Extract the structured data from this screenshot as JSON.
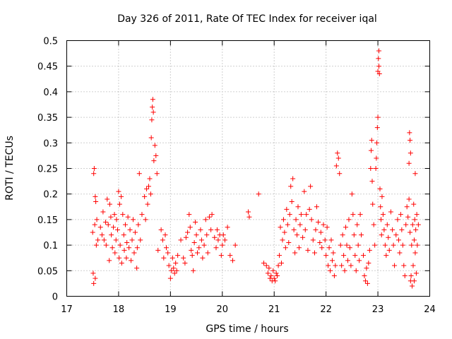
{
  "chart_data": {
    "type": "scatter",
    "title": "Day 326 of 2011, Rate Of TEC Index for receiver iqal",
    "xlabel": "GPS time / hours",
    "ylabel": "ROTI / TECUs",
    "xlim": [
      17,
      24
    ],
    "ylim": [
      0,
      0.5
    ],
    "xticks": [
      17,
      18,
      19,
      20,
      21,
      22,
      23,
      24
    ],
    "yticks": [
      0,
      0.05,
      0.1,
      0.15,
      0.2,
      0.25,
      0.3,
      0.35,
      0.4,
      0.45,
      0.5
    ],
    "grid": true,
    "marker": "+",
    "color": "#ff0000",
    "series": [
      {
        "name": "ROTI",
        "points": [
          [
            17.5,
            0.125
          ],
          [
            17.51,
            0.045
          ],
          [
            17.52,
            0.24
          ],
          [
            17.52,
            0.025
          ],
          [
            17.53,
            0.25
          ],
          [
            17.54,
            0.14
          ],
          [
            17.55,
            0.035
          ],
          [
            17.55,
            0.195
          ],
          [
            17.56,
            0.185
          ],
          [
            17.57,
            0.1
          ],
          [
            17.58,
            0.15
          ],
          [
            17.6,
            0.11
          ],
          [
            17.65,
            0.135
          ],
          [
            17.68,
            0.12
          ],
          [
            17.7,
            0.165
          ],
          [
            17.72,
            0.11
          ],
          [
            17.75,
            0.145
          ],
          [
            17.76,
            0.1
          ],
          [
            17.78,
            0.19
          ],
          [
            17.8,
            0.14
          ],
          [
            17.82,
            0.07
          ],
          [
            17.83,
            0.18
          ],
          [
            17.85,
            0.155
          ],
          [
            17.86,
            0.12
          ],
          [
            17.88,
            0.095
          ],
          [
            17.9,
            0.135
          ],
          [
            17.92,
            0.16
          ],
          [
            17.93,
            0.085
          ],
          [
            17.95,
            0.11
          ],
          [
            17.96,
            0.15
          ],
          [
            17.98,
            0.13
          ],
          [
            18.0,
            0.205
          ],
          [
            18.01,
            0.075
          ],
          [
            18.02,
            0.18
          ],
          [
            18.03,
            0.1
          ],
          [
            18.05,
            0.195
          ],
          [
            18.06,
            0.065
          ],
          [
            18.08,
            0.16
          ],
          [
            18.1,
            0.12
          ],
          [
            18.11,
            0.09
          ],
          [
            18.13,
            0.14
          ],
          [
            18.15,
            0.075
          ],
          [
            18.16,
            0.105
          ],
          [
            18.18,
            0.155
          ],
          [
            18.2,
            0.095
          ],
          [
            18.22,
            0.13
          ],
          [
            18.24,
            0.07
          ],
          [
            18.26,
            0.11
          ],
          [
            18.28,
            0.15
          ],
          [
            18.3,
            0.085
          ],
          [
            18.32,
            0.125
          ],
          [
            18.35,
            0.055
          ],
          [
            18.36,
            0.095
          ],
          [
            18.38,
            0.14
          ],
          [
            18.4,
            0.24
          ],
          [
            18.42,
            0.11
          ],
          [
            18.45,
            0.16
          ],
          [
            18.5,
            0.195
          ],
          [
            18.52,
            0.15
          ],
          [
            18.54,
            0.21
          ],
          [
            18.56,
            0.18
          ],
          [
            18.58,
            0.215
          ],
          [
            18.6,
            0.23
          ],
          [
            18.62,
            0.2
          ],
          [
            18.63,
            0.31
          ],
          [
            18.64,
            0.345
          ],
          [
            18.65,
            0.37
          ],
          [
            18.66,
            0.385
          ],
          [
            18.67,
            0.36
          ],
          [
            18.68,
            0.265
          ],
          [
            18.7,
            0.295
          ],
          [
            18.72,
            0.275
          ],
          [
            18.74,
            0.24
          ],
          [
            18.76,
            0.09
          ],
          [
            18.82,
            0.13
          ],
          [
            18.85,
            0.11
          ],
          [
            18.87,
            0.075
          ],
          [
            18.9,
            0.12
          ],
          [
            18.92,
            0.095
          ],
          [
            18.95,
            0.085
          ],
          [
            18.97,
            0.06
          ],
          [
            19.0,
            0.035
          ],
          [
            19.02,
            0.05
          ],
          [
            19.04,
            0.075
          ],
          [
            19.06,
            0.055
          ],
          [
            19.08,
            0.045
          ],
          [
            19.1,
            0.065
          ],
          [
            19.12,
            0.05
          ],
          [
            19.14,
            0.08
          ],
          [
            19.2,
            0.11
          ],
          [
            19.25,
            0.075
          ],
          [
            19.28,
            0.065
          ],
          [
            19.3,
            0.115
          ],
          [
            19.33,
            0.125
          ],
          [
            19.36,
            0.16
          ],
          [
            19.38,
            0.135
          ],
          [
            19.4,
            0.09
          ],
          [
            19.42,
            0.08
          ],
          [
            19.44,
            0.05
          ],
          [
            19.46,
            0.105
          ],
          [
            19.48,
            0.145
          ],
          [
            19.5,
            0.12
          ],
          [
            19.52,
            0.085
          ],
          [
            19.55,
            0.095
          ],
          [
            19.58,
            0.13
          ],
          [
            19.6,
            0.11
          ],
          [
            19.62,
            0.075
          ],
          [
            19.65,
            0.1
          ],
          [
            19.68,
            0.15
          ],
          [
            19.7,
            0.12
          ],
          [
            19.72,
            0.085
          ],
          [
            19.75,
            0.155
          ],
          [
            19.78,
            0.13
          ],
          [
            19.8,
            0.16
          ],
          [
            19.85,
            0.115
          ],
          [
            19.88,
            0.095
          ],
          [
            19.9,
            0.13
          ],
          [
            19.92,
            0.11
          ],
          [
            19.95,
            0.12
          ],
          [
            19.98,
            0.08
          ],
          [
            20.0,
            0.1
          ],
          [
            20.02,
            0.12
          ],
          [
            20.05,
            0.11
          ],
          [
            20.1,
            0.135
          ],
          [
            20.15,
            0.08
          ],
          [
            20.2,
            0.07
          ],
          [
            20.25,
            0.1
          ],
          [
            20.5,
            0.165
          ],
          [
            20.52,
            0.155
          ],
          [
            20.7,
            0.2
          ],
          [
            20.8,
            0.065
          ],
          [
            20.85,
            0.06
          ],
          [
            20.88,
            0.045
          ],
          [
            20.9,
            0.055
          ],
          [
            20.92,
            0.035
          ],
          [
            20.94,
            0.04
          ],
          [
            20.96,
            0.03
          ],
          [
            20.98,
            0.05
          ],
          [
            21.0,
            0.035
          ],
          [
            21.02,
            0.03
          ],
          [
            21.04,
            0.045
          ],
          [
            21.06,
            0.04
          ],
          [
            21.08,
            0.06
          ],
          [
            21.1,
            0.08
          ],
          [
            21.12,
            0.135
          ],
          [
            21.14,
            0.065
          ],
          [
            21.16,
            0.11
          ],
          [
            21.18,
            0.15
          ],
          [
            21.2,
            0.125
          ],
          [
            21.22,
            0.095
          ],
          [
            21.24,
            0.17
          ],
          [
            21.26,
            0.14
          ],
          [
            21.28,
            0.105
          ],
          [
            21.3,
            0.16
          ],
          [
            21.32,
            0.215
          ],
          [
            21.34,
            0.185
          ],
          [
            21.36,
            0.23
          ],
          [
            21.38,
            0.13
          ],
          [
            21.4,
            0.085
          ],
          [
            21.42,
            0.15
          ],
          [
            21.44,
            0.12
          ],
          [
            21.46,
            0.175
          ],
          [
            21.48,
            0.095
          ],
          [
            21.5,
            0.14
          ],
          [
            21.52,
            0.16
          ],
          [
            21.55,
            0.115
          ],
          [
            21.58,
            0.205
          ],
          [
            21.6,
            0.13
          ],
          [
            21.62,
            0.16
          ],
          [
            21.65,
            0.09
          ],
          [
            21.68,
            0.17
          ],
          [
            21.7,
            0.215
          ],
          [
            21.72,
            0.15
          ],
          [
            21.75,
            0.11
          ],
          [
            21.78,
            0.085
          ],
          [
            21.8,
            0.13
          ],
          [
            21.82,
            0.175
          ],
          [
            21.85,
            0.145
          ],
          [
            21.88,
            0.105
          ],
          [
            21.9,
            0.125
          ],
          [
            21.92,
            0.095
          ],
          [
            21.95,
            0.14
          ],
          [
            21.98,
            0.11
          ],
          [
            22.0,
            0.08
          ],
          [
            22.02,
            0.135
          ],
          [
            22.04,
            0.06
          ],
          [
            22.06,
            0.095
          ],
          [
            22.08,
            0.05
          ],
          [
            22.1,
            0.11
          ],
          [
            22.12,
            0.07
          ],
          [
            22.14,
            0.085
          ],
          [
            22.16,
            0.04
          ],
          [
            22.18,
            0.06
          ],
          [
            22.2,
            0.255
          ],
          [
            22.22,
            0.28
          ],
          [
            22.24,
            0.27
          ],
          [
            22.26,
            0.24
          ],
          [
            22.28,
            0.1
          ],
          [
            22.3,
            0.06
          ],
          [
            22.32,
            0.12
          ],
          [
            22.34,
            0.08
          ],
          [
            22.36,
            0.05
          ],
          [
            22.38,
            0.135
          ],
          [
            22.4,
            0.1
          ],
          [
            22.42,
            0.07
          ],
          [
            22.44,
            0.15
          ],
          [
            22.46,
            0.095
          ],
          [
            22.48,
            0.06
          ],
          [
            22.5,
            0.2
          ],
          [
            22.52,
            0.16
          ],
          [
            22.54,
            0.12
          ],
          [
            22.56,
            0.08
          ],
          [
            22.58,
            0.05
          ],
          [
            22.6,
            0.14
          ],
          [
            22.62,
            0.1
          ],
          [
            22.64,
            0.07
          ],
          [
            22.66,
            0.16
          ],
          [
            22.68,
            0.12
          ],
          [
            22.72,
            0.08
          ],
          [
            22.74,
            0.04
          ],
          [
            22.76,
            0.03
          ],
          [
            22.78,
            0.055
          ],
          [
            22.8,
            0.025
          ],
          [
            22.82,
            0.065
          ],
          [
            22.84,
            0.09
          ],
          [
            22.86,
            0.25
          ],
          [
            22.87,
            0.285
          ],
          [
            22.88,
            0.305
          ],
          [
            22.89,
            0.225
          ],
          [
            22.9,
            0.18
          ],
          [
            22.92,
            0.14
          ],
          [
            22.94,
            0.1
          ],
          [
            22.96,
            0.25
          ],
          [
            22.97,
            0.27
          ],
          [
            22.98,
            0.3
          ],
          [
            22.99,
            0.33
          ],
          [
            23.0,
            0.35
          ],
          [
            23.0,
            0.44
          ],
          [
            23.01,
            0.465
          ],
          [
            23.02,
            0.48
          ],
          [
            23.02,
            0.45
          ],
          [
            23.03,
            0.435
          ],
          [
            23.04,
            0.21
          ],
          [
            23.05,
            0.175
          ],
          [
            23.06,
            0.15
          ],
          [
            23.07,
            0.12
          ],
          [
            23.08,
            0.195
          ],
          [
            23.1,
            0.16
          ],
          [
            23.12,
            0.13
          ],
          [
            23.14,
            0.1
          ],
          [
            23.16,
            0.08
          ],
          [
            23.18,
            0.14
          ],
          [
            23.2,
            0.115
          ],
          [
            23.22,
            0.09
          ],
          [
            23.25,
            0.165
          ],
          [
            23.28,
            0.13
          ],
          [
            23.3,
            0.1
          ],
          [
            23.32,
            0.06
          ],
          [
            23.35,
            0.12
          ],
          [
            23.38,
            0.15
          ],
          [
            23.4,
            0.11
          ],
          [
            23.42,
            0.085
          ],
          [
            23.44,
            0.16
          ],
          [
            23.46,
            0.13
          ],
          [
            23.48,
            0.1
          ],
          [
            23.5,
            0.06
          ],
          [
            23.52,
            0.04
          ],
          [
            23.54,
            0.14
          ],
          [
            23.56,
            0.175
          ],
          [
            23.58,
            0.155
          ],
          [
            23.6,
            0.19
          ],
          [
            23.6,
            0.26
          ],
          [
            23.61,
            0.32
          ],
          [
            23.62,
            0.305
          ],
          [
            23.62,
            0.125
          ],
          [
            23.63,
            0.28
          ],
          [
            23.63,
            0.03
          ],
          [
            23.64,
            0.04
          ],
          [
            23.65,
            0.1
          ],
          [
            23.66,
            0.02
          ],
          [
            23.67,
            0.14
          ],
          [
            23.68,
            0.06
          ],
          [
            23.69,
            0.18
          ],
          [
            23.7,
            0.11
          ],
          [
            23.7,
            0.03
          ],
          [
            23.71,
            0.15
          ],
          [
            23.72,
            0.24
          ],
          [
            23.72,
            0.085
          ],
          [
            23.73,
            0.13
          ],
          [
            23.74,
            0.045
          ],
          [
            23.75,
            0.16
          ],
          [
            23.76,
            0.1
          ],
          [
            23.78,
            0.14
          ]
        ]
      }
    ]
  }
}
